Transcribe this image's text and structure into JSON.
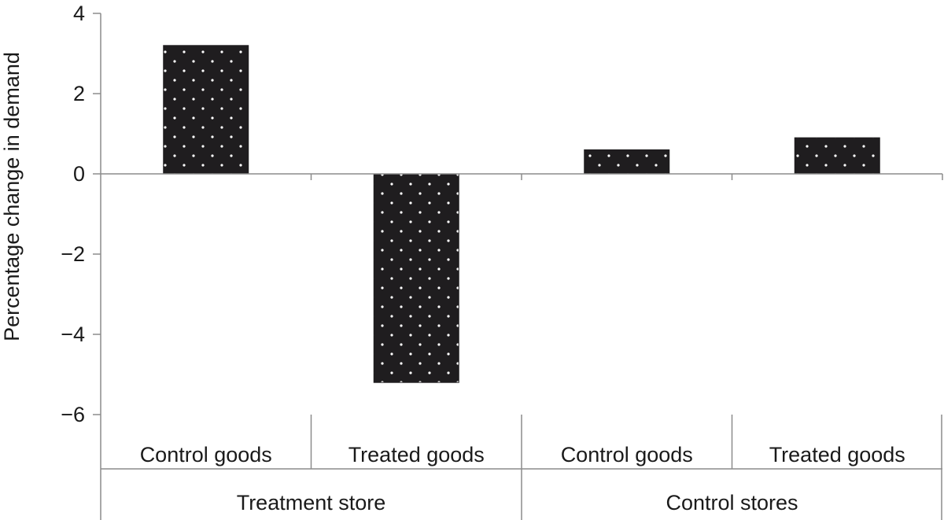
{
  "chart_data": {
    "type": "bar",
    "title": "",
    "ylabel": "Percentage change in demand",
    "xlabel": "",
    "ylim": [
      -6,
      4
    ],
    "yticks": [
      4,
      2,
      0,
      -2,
      -4,
      -6
    ],
    "ytick_labels": [
      "4",
      "2",
      "0",
      "−2",
      "−4",
      "−6"
    ],
    "grid": false,
    "groups": [
      {
        "label": "Treatment store",
        "categories": [
          "Control goods",
          "Treated goods"
        ]
      },
      {
        "label": "Control stores",
        "categories": [
          "Control goods",
          "Treated goods"
        ]
      }
    ],
    "categories": [
      "Control goods",
      "Treated goods",
      "Control goods",
      "Treated goods"
    ],
    "values": [
      3.2,
      -5.2,
      0.6,
      0.9
    ],
    "bar_color": "#1f1d1f",
    "dot_color": "#ffffff"
  }
}
